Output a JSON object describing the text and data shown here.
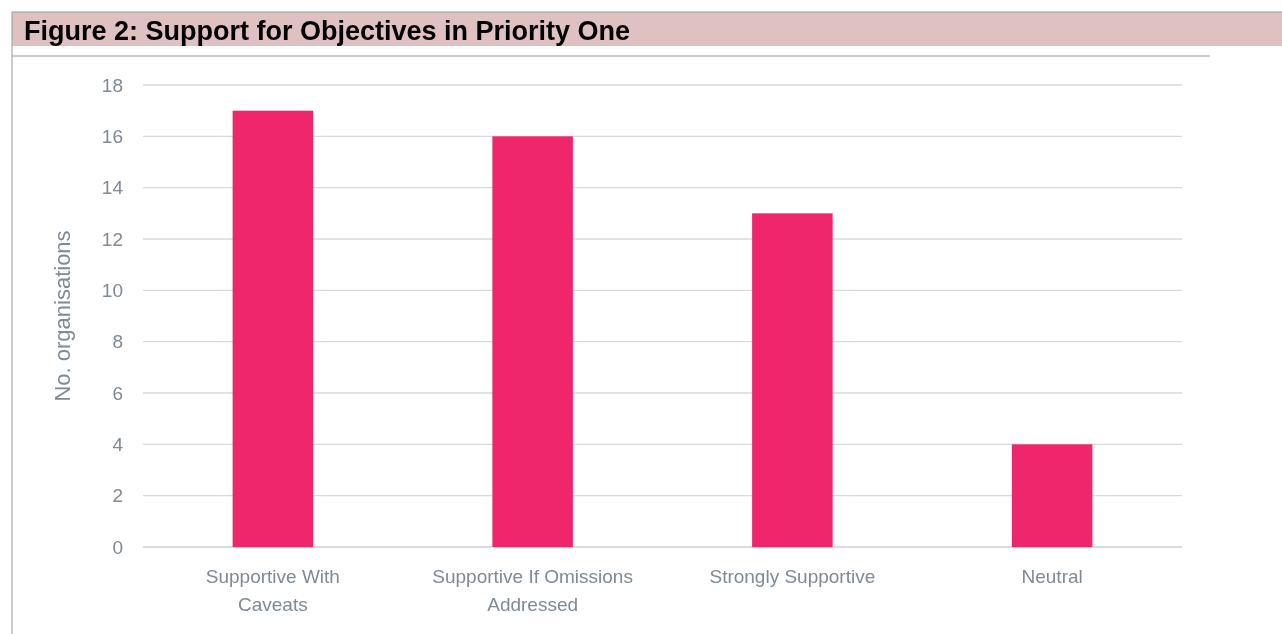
{
  "chart_data": {
    "type": "bar",
    "title": "Figure 2: Support for Objectives in Priority One",
    "ylabel": "No. organisations",
    "categories": [
      "Supportive With Caveats",
      "Supportive If Omissions Addressed",
      "Strongly Supportive",
      "Neutral"
    ],
    "values": [
      17,
      16,
      13,
      4
    ],
    "color": "#ef266c",
    "ylim": [
      0,
      18
    ],
    "yticks": [
      0,
      2,
      4,
      6,
      8,
      10,
      12,
      14,
      16,
      18
    ],
    "grid": "y"
  }
}
